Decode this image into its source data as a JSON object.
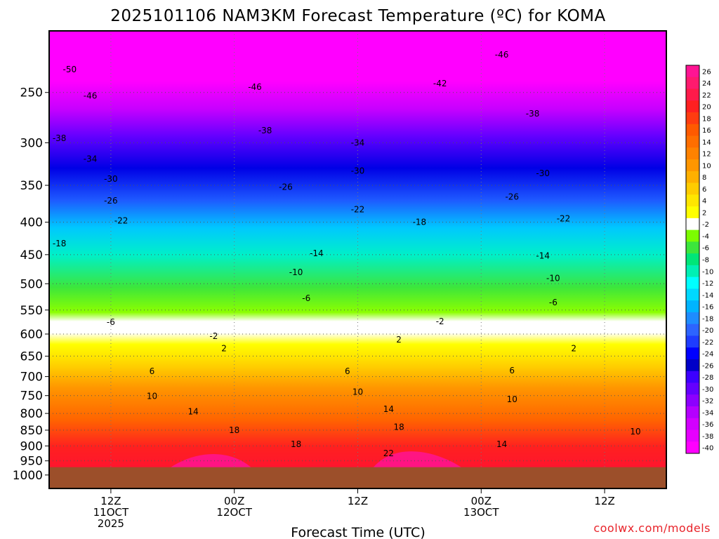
{
  "title": "2025101106 NAM3KM Forecast Temperature (ºC) for KOMA",
  "xlabel": "Forecast Time (UTC)",
  "credit": "coolwx.com/models",
  "chart_data": {
    "type": "heatmap",
    "title": "2025101106 NAM3KM Forecast Temperature (ºC) for KOMA",
    "xlabel": "Forecast Time (UTC)",
    "ylabel": "",
    "y_axis": {
      "scale": "log",
      "inverted": true,
      "range_hPa": [
        1050,
        200
      ],
      "ticks": [
        250,
        300,
        350,
        400,
        450,
        500,
        550,
        600,
        650,
        700,
        750,
        800,
        850,
        900,
        950,
        1000
      ]
    },
    "x_axis": {
      "range_hours": [
        0,
        60
      ],
      "ticks": [
        {
          "hour": 6,
          "lines": [
            "12Z",
            "11OCT",
            "2025"
          ]
        },
        {
          "hour": 18,
          "lines": [
            "00Z",
            "12OCT"
          ]
        },
        {
          "hour": 30,
          "lines": [
            "12Z"
          ]
        },
        {
          "hour": 42,
          "lines": [
            "00Z",
            "13OCT"
          ]
        },
        {
          "hour": 54,
          "lines": [
            "12Z"
          ]
        }
      ]
    },
    "grid": true,
    "surface_pressure_hPa": 972,
    "colorbar": {
      "placement": "right",
      "labels": [
        "26",
        "24",
        "22",
        "20",
        "18",
        "16",
        "14",
        "12",
        "10",
        "8",
        "6",
        "4",
        "2",
        "-2",
        "-4",
        "-6",
        "-8",
        "-10",
        "-12",
        "-14",
        "-16",
        "-18",
        "-20",
        "-22",
        "-24",
        "-26",
        "-28",
        "-30",
        "-32",
        "-34",
        "-36",
        "-38",
        "-40"
      ],
      "colors": [
        "#ff1493",
        "#ff1a6e",
        "#ff1a4a",
        "#ff2020",
        "#ff3c10",
        "#ff5a00",
        "#ff6e00",
        "#ff8200",
        "#ff9600",
        "#ffb000",
        "#ffcc00",
        "#ffe600",
        "#ffff00",
        "#ffffff",
        "#7cfc00",
        "#3ce63c",
        "#00e678",
        "#00f0b4",
        "#00ffff",
        "#00d8ff",
        "#00b4ff",
        "#1e8cff",
        "#2d64ff",
        "#1e3cff",
        "#0000ff",
        "#0000c8",
        "#3c00ff",
        "#6400ff",
        "#8c00ff",
        "#b400ff",
        "#d200ff",
        "#e600ff",
        "#ff00ff"
      ]
    },
    "contour_labels": [
      {
        "value": "-50",
        "hour": 2,
        "hPa": 230
      },
      {
        "value": "-46",
        "hour": 4,
        "hPa": 253
      },
      {
        "value": "-46",
        "hour": 20,
        "hPa": 245
      },
      {
        "value": "-42",
        "hour": 38,
        "hPa": 242
      },
      {
        "value": "-46",
        "hour": 44,
        "hPa": 218
      },
      {
        "value": "-38",
        "hour": 1,
        "hPa": 295
      },
      {
        "value": "-38",
        "hour": 21,
        "hPa": 287
      },
      {
        "value": "-38",
        "hour": 47,
        "hPa": 270
      },
      {
        "value": "-34",
        "hour": 4,
        "hPa": 318
      },
      {
        "value": "-34",
        "hour": 30,
        "hPa": 300
      },
      {
        "value": "-30",
        "hour": 6,
        "hPa": 342
      },
      {
        "value": "-30",
        "hour": 30,
        "hPa": 332
      },
      {
        "value": "-30",
        "hour": 48,
        "hPa": 335
      },
      {
        "value": "-26",
        "hour": 6,
        "hPa": 370
      },
      {
        "value": "-26",
        "hour": 23,
        "hPa": 352
      },
      {
        "value": "-26",
        "hour": 45,
        "hPa": 365
      },
      {
        "value": "-22",
        "hour": 7,
        "hPa": 398
      },
      {
        "value": "-22",
        "hour": 30,
        "hPa": 382
      },
      {
        "value": "-22",
        "hour": 50,
        "hPa": 395
      },
      {
        "value": "-18",
        "hour": 1,
        "hPa": 432
      },
      {
        "value": "-18",
        "hour": 36,
        "hPa": 400
      },
      {
        "value": "-14",
        "hour": 26,
        "hPa": 448
      },
      {
        "value": "-14",
        "hour": 48,
        "hPa": 452
      },
      {
        "value": "-10",
        "hour": 24,
        "hPa": 480
      },
      {
        "value": "-10",
        "hour": 49,
        "hPa": 490
      },
      {
        "value": "-6",
        "hour": 25,
        "hPa": 527
      },
      {
        "value": "-6",
        "hour": 49,
        "hPa": 535
      },
      {
        "value": "-6",
        "hour": 6,
        "hPa": 575
      },
      {
        "value": "-2",
        "hour": 38,
        "hPa": 573
      },
      {
        "value": "-2",
        "hour": 16,
        "hPa": 605
      },
      {
        "value": "2",
        "hour": 34,
        "hPa": 612
      },
      {
        "value": "2",
        "hour": 17,
        "hPa": 632
      },
      {
        "value": "2",
        "hour": 51,
        "hPa": 632
      },
      {
        "value": "6",
        "hour": 10,
        "hPa": 687
      },
      {
        "value": "6",
        "hour": 29,
        "hPa": 687
      },
      {
        "value": "6",
        "hour": 45,
        "hPa": 685
      },
      {
        "value": "10",
        "hour": 10,
        "hPa": 752
      },
      {
        "value": "10",
        "hour": 30,
        "hPa": 740
      },
      {
        "value": "10",
        "hour": 45,
        "hPa": 760
      },
      {
        "value": "10",
        "hour": 57,
        "hPa": 855
      },
      {
        "value": "14",
        "hour": 14,
        "hPa": 795
      },
      {
        "value": "14",
        "hour": 33,
        "hPa": 788
      },
      {
        "value": "14",
        "hour": 44,
        "hPa": 895
      },
      {
        "value": "18",
        "hour": 18,
        "hPa": 850
      },
      {
        "value": "18",
        "hour": 34,
        "hPa": 840
      },
      {
        "value": "18",
        "hour": 24,
        "hPa": 895
      },
      {
        "value": "22",
        "hour": 33,
        "hPa": 925
      }
    ]
  }
}
